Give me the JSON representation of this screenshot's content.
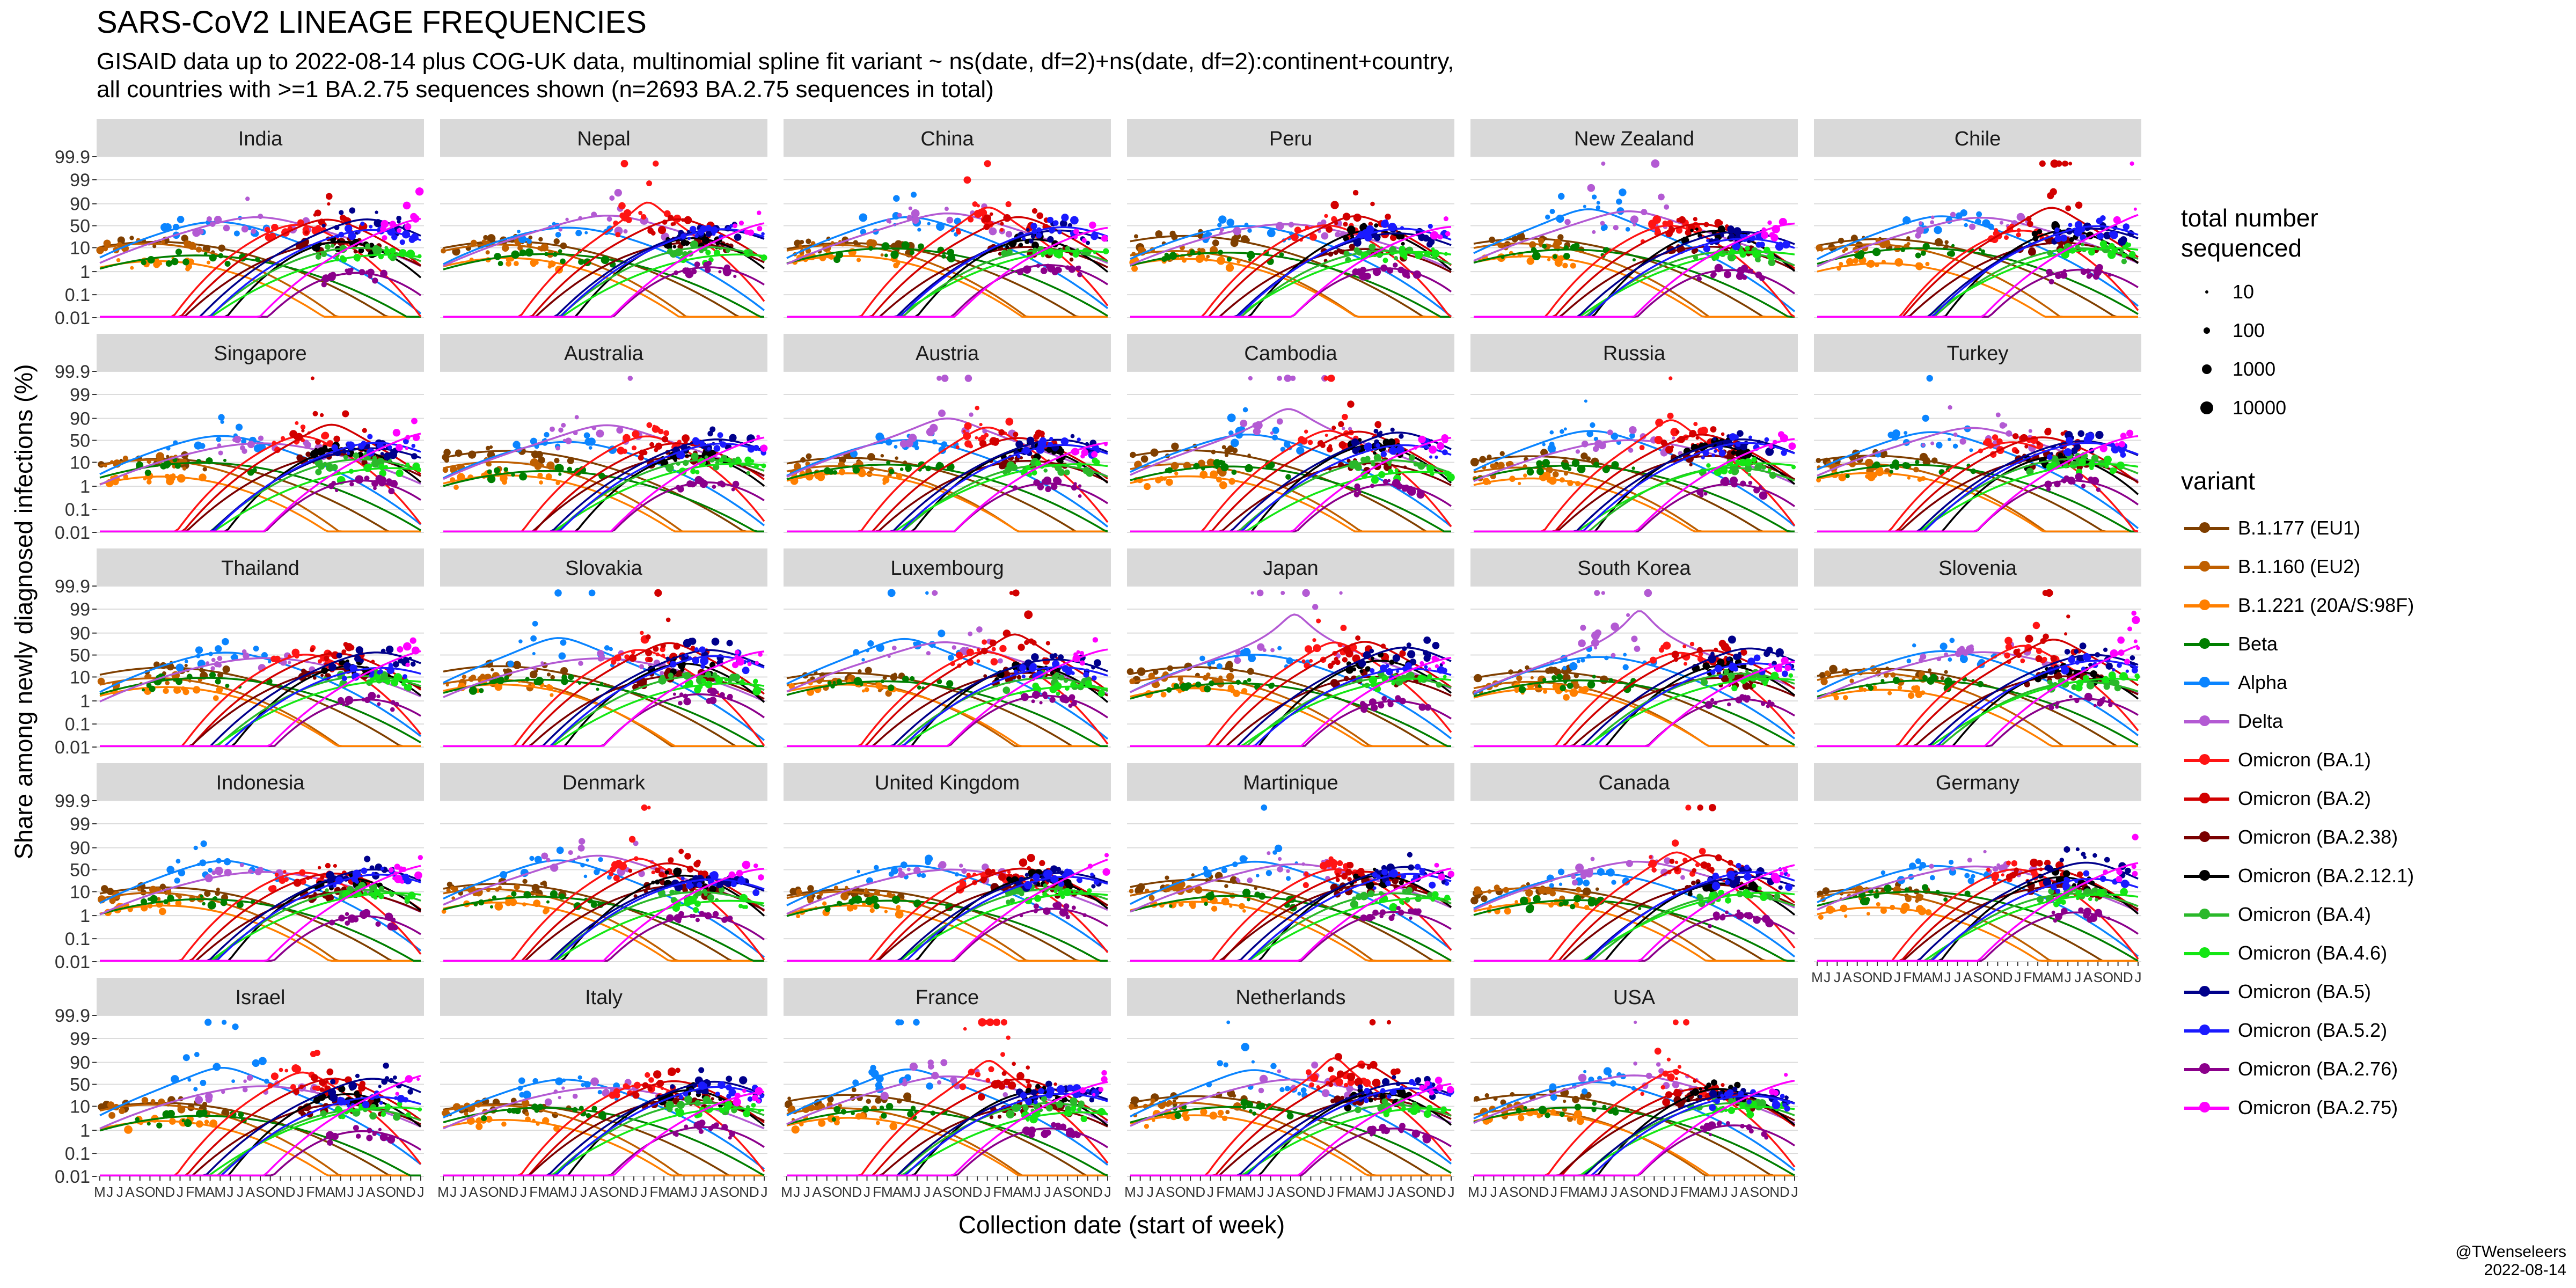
{
  "title": "SARS-CoV2 LINEAGE FREQUENCIES",
  "subtitle_line1": "GISAID data up to 2022-08-14 plus COG-UK data, multinomial spline fit variant ~ ns(date, df=2)+ns(date, df=2):continent+country,",
  "subtitle_line2": "all countries with >=1 BA.2.75 sequences shown (n=2693 BA.2.75 sequences in total)",
  "credit_line1": "@TWenseleers",
  "credit_line2": "2022-08-14",
  "size_legend": {
    "title_line1": "total number",
    "title_line2": "sequenced",
    "items": [
      {
        "label": "10",
        "value": 10
      },
      {
        "label": "100",
        "value": 100
      },
      {
        "label": "1000",
        "value": 1000
      },
      {
        "label": "10000",
        "value": 10000
      }
    ]
  },
  "variant_legend_title": "variant",
  "chart_data": {
    "type": "line",
    "xlabel": "Collection date (start of week)",
    "ylabel": "Share among newly diagnosed infections (%)",
    "y_scale": "logit",
    "y_ticks": [
      "0.01",
      "0.1",
      "1",
      "10",
      "50",
      "90",
      "99",
      "99.9"
    ],
    "y_tick_values": [
      0.01,
      0.1,
      1,
      10,
      50,
      90,
      99,
      99.9
    ],
    "x_ticks": [
      "M",
      "J",
      "J",
      "A",
      "S",
      "O",
      "N",
      "D",
      "J",
      "F",
      "M",
      "A",
      "M",
      "J",
      "J",
      "A",
      "S",
      "O",
      "N",
      "D",
      "J",
      "F",
      "M",
      "A",
      "M",
      "J",
      "J",
      "A",
      "S",
      "O",
      "N",
      "D",
      "J"
    ],
    "x_range": [
      "2020-05",
      "2023-01"
    ],
    "grid": true,
    "legend_position": "right",
    "facets": [
      "India",
      "Nepal",
      "China",
      "Peru",
      "New Zealand",
      "Chile",
      "Singapore",
      "Australia",
      "Austria",
      "Cambodia",
      "Russia",
      "Turkey",
      "Thailand",
      "Slovakia",
      "Luxembourg",
      "Japan",
      "South Korea",
      "Slovenia",
      "Indonesia",
      "Denmark",
      "United Kingdom",
      "Martinique",
      "Canada",
      "Germany",
      "Israel",
      "Italy",
      "France",
      "Netherlands",
      "USA"
    ],
    "series": [
      {
        "name": "B.1.177 (EU1)",
        "color": "#7f3f00",
        "peak_month": 6,
        "width": 6,
        "peak": 30
      },
      {
        "name": "B.1.160 (EU2)",
        "color": "#bf5f00",
        "peak_month": 5,
        "width": 5,
        "peak": 15
      },
      {
        "name": "B.1.221 (20A/S:98F)",
        "color": "#ff7f00",
        "peak_month": 6,
        "width": 5,
        "peak": 5
      },
      {
        "name": "Beta",
        "color": "#007f00",
        "peak_month": 10,
        "width": 6,
        "peak": 10
      },
      {
        "name": "Alpha",
        "color": "#0a84ff",
        "peak_month": 12,
        "width": 5,
        "peak": 85
      },
      {
        "name": "Delta",
        "color": "#b35ad3",
        "peak_month": 16,
        "width": 6,
        "peak": 99.5
      },
      {
        "name": "Omicron (BA.1)",
        "color": "#ff1414",
        "peak_month": 20,
        "width": 3,
        "peak": 95
      },
      {
        "name": "Omicron (BA.2)",
        "color": "#d20000",
        "peak_month": 23,
        "width": 3.5,
        "peak": 90
      },
      {
        "name": "Omicron (BA.2.38)",
        "color": "#7a0000",
        "peak_month": 24,
        "width": 4,
        "peak": 20
      },
      {
        "name": "Omicron (BA.2.12.1)",
        "color": "#000000",
        "peak_month": 24.5,
        "width": 3,
        "peak": 40
      },
      {
        "name": "Omicron (BA.4)",
        "color": "#2ab82a",
        "peak_month": 26,
        "width": 4,
        "peak": 15
      },
      {
        "name": "Omicron (BA.4.6)",
        "color": "#14e614",
        "peak_month": 29,
        "width": 5,
        "peak": 10
      },
      {
        "name": "Omicron (BA.5)",
        "color": "#00008b",
        "peak_month": 27,
        "width": 4,
        "peak": 70
      },
      {
        "name": "Omicron (BA.5.2)",
        "color": "#1a1aff",
        "peak_month": 27.5,
        "width": 4,
        "peak": 50
      },
      {
        "name": "Omicron (BA.2.76)",
        "color": "#8b008b",
        "peak_month": 26,
        "width": 3,
        "peak": 2
      },
      {
        "name": "Omicron (BA.2.75)",
        "color": "#ff00ff",
        "peak_month": 33,
        "width": 4,
        "peak": 80
      }
    ]
  }
}
